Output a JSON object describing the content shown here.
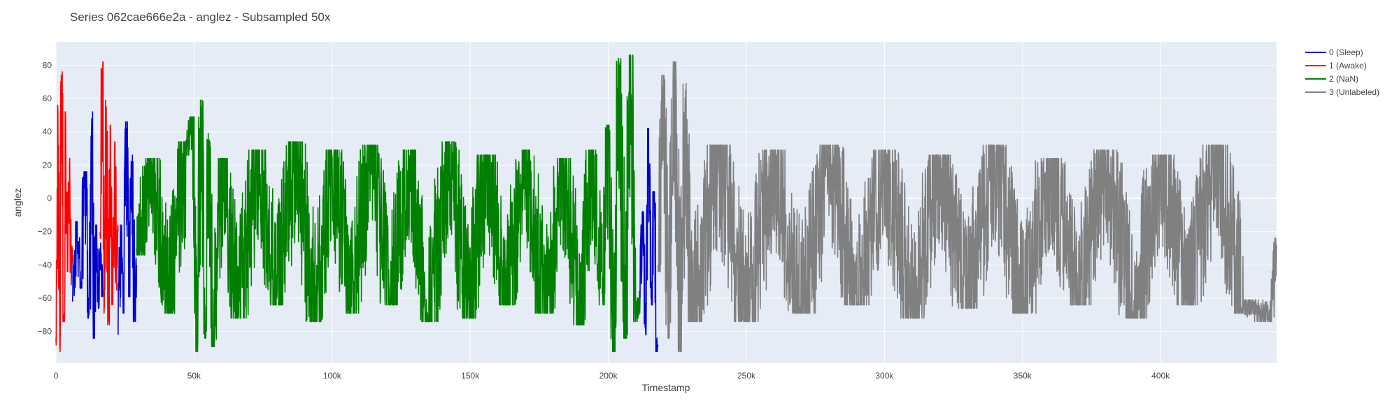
{
  "chart_data": {
    "type": "line",
    "title": "Series 062cae666e2a - anglez - Subsampled 50x",
    "xlabel": "Timestamp",
    "ylabel": "anglez",
    "xlim": [
      0,
      442000
    ],
    "ylim": [
      -99,
      94
    ],
    "x_ticks": [
      0,
      50000,
      100000,
      150000,
      200000,
      250000,
      300000,
      350000,
      400000
    ],
    "x_tick_labels": [
      "0",
      "50k",
      "100k",
      "150k",
      "200k",
      "250k",
      "300k",
      "350k",
      "400k"
    ],
    "y_ticks": [
      -80,
      -60,
      -40,
      -20,
      0,
      20,
      40,
      60,
      80
    ],
    "y_tick_labels": [
      "−80",
      "−60",
      "−40",
      "−20",
      "0",
      "20",
      "40",
      "60",
      "80"
    ],
    "grid": true,
    "legend_position": "top-right",
    "plot_bgcolor": "#e5ecf6",
    "series": [
      {
        "name": "0 (Sleep)",
        "color": "#0000cd",
        "segments": [
          {
            "x": [
              6000,
              7500,
              9000,
              10500,
              12000,
              13000,
              13800,
              14500,
              15200,
              16000,
              17000
            ],
            "y": [
              -62,
              -18,
              -50,
              12,
              -68,
              48,
              -80,
              -20,
              -62,
              -30,
              -55
            ]
          },
          {
            "x": [
              22500,
              23500,
              24500,
              25500,
              26500,
              27500,
              28500,
              29200
            ],
            "y": [
              -82,
              -20,
              -65,
              42,
              -55,
              22,
              -70,
              -40
            ]
          },
          {
            "x": [
              211500,
              212500,
              213500,
              214500,
              215500,
              216500,
              217500,
              218000
            ],
            "y": [
              -60,
              -12,
              -78,
              38,
              -60,
              0,
              -88,
              -88
            ]
          }
        ]
      },
      {
        "name": "1 (Awake)",
        "color": "#ff0000",
        "segments": [
          {
            "x": [
              0,
              700,
              1400,
              2100,
              2800,
              3500,
              4200,
              4900,
              5600,
              6000
            ],
            "y": [
              -84,
              52,
              -88,
              72,
              -70,
              48,
              -40,
              20,
              -48,
              -30
            ]
          },
          {
            "x": [
              16000,
              16800,
              17500,
              18200,
              19000,
              19800,
              20500,
              21200,
              22000,
              22500
            ],
            "y": [
              -20,
              78,
              -65,
              55,
              -72,
              40,
              -60,
              30,
              -55,
              -20
            ]
          }
        ]
      },
      {
        "name": "2 (NaN)",
        "color": "#008000",
        "segments": [
          {
            "x": [
              29200,
              35000,
              41000,
              47000,
              49500,
              51000,
              52500,
              54000,
              55500,
              57000,
              60000,
              66000,
              73000,
              80000,
              87000,
              94000,
              100000,
              107000,
              114000,
              121000,
              128000,
              135000,
              142000,
              149000,
              156000,
              163000,
              170000,
              177000,
              184000,
              190000,
              194000,
              198000,
              200000,
              202000,
              204000,
              206000,
              208000,
              210000,
              211500
            ],
            "y": [
              -30,
              20,
              -65,
              30,
              45,
              -88,
              55,
              -80,
              35,
              -85,
              20,
              -68,
              25,
              -60,
              30,
              -70,
              25,
              -65,
              28,
              -60,
              25,
              -70,
              30,
              -68,
              22,
              -60,
              25,
              -65,
              20,
              -72,
              25,
              -60,
              40,
              -88,
              80,
              -80,
              82,
              -70,
              -60
            ]
          }
        ]
      },
      {
        "name": "3 (Unlabeled)",
        "color": "#808080",
        "segments": [
          {
            "x": [
              218000,
              220000,
              222000,
              224000,
              226000,
              228000,
              230000,
              240000,
              250000,
              260000,
              270000,
              280000,
              290000,
              300000,
              310000,
              320000,
              330000,
              340000,
              350000,
              360000,
              370000,
              380000,
              390000,
              400000,
              410000,
              420000,
              430000,
              440000,
              442000
            ],
            "y": [
              -40,
              70,
              -80,
              78,
              -88,
              65,
              -70,
              28,
              -70,
              25,
              -65,
              28,
              -60,
              25,
              -68,
              22,
              -62,
              28,
              -65,
              20,
              -60,
              25,
              -68,
              22,
              -60,
              28,
              -65,
              -70,
              -28
            ]
          }
        ]
      }
    ]
  }
}
